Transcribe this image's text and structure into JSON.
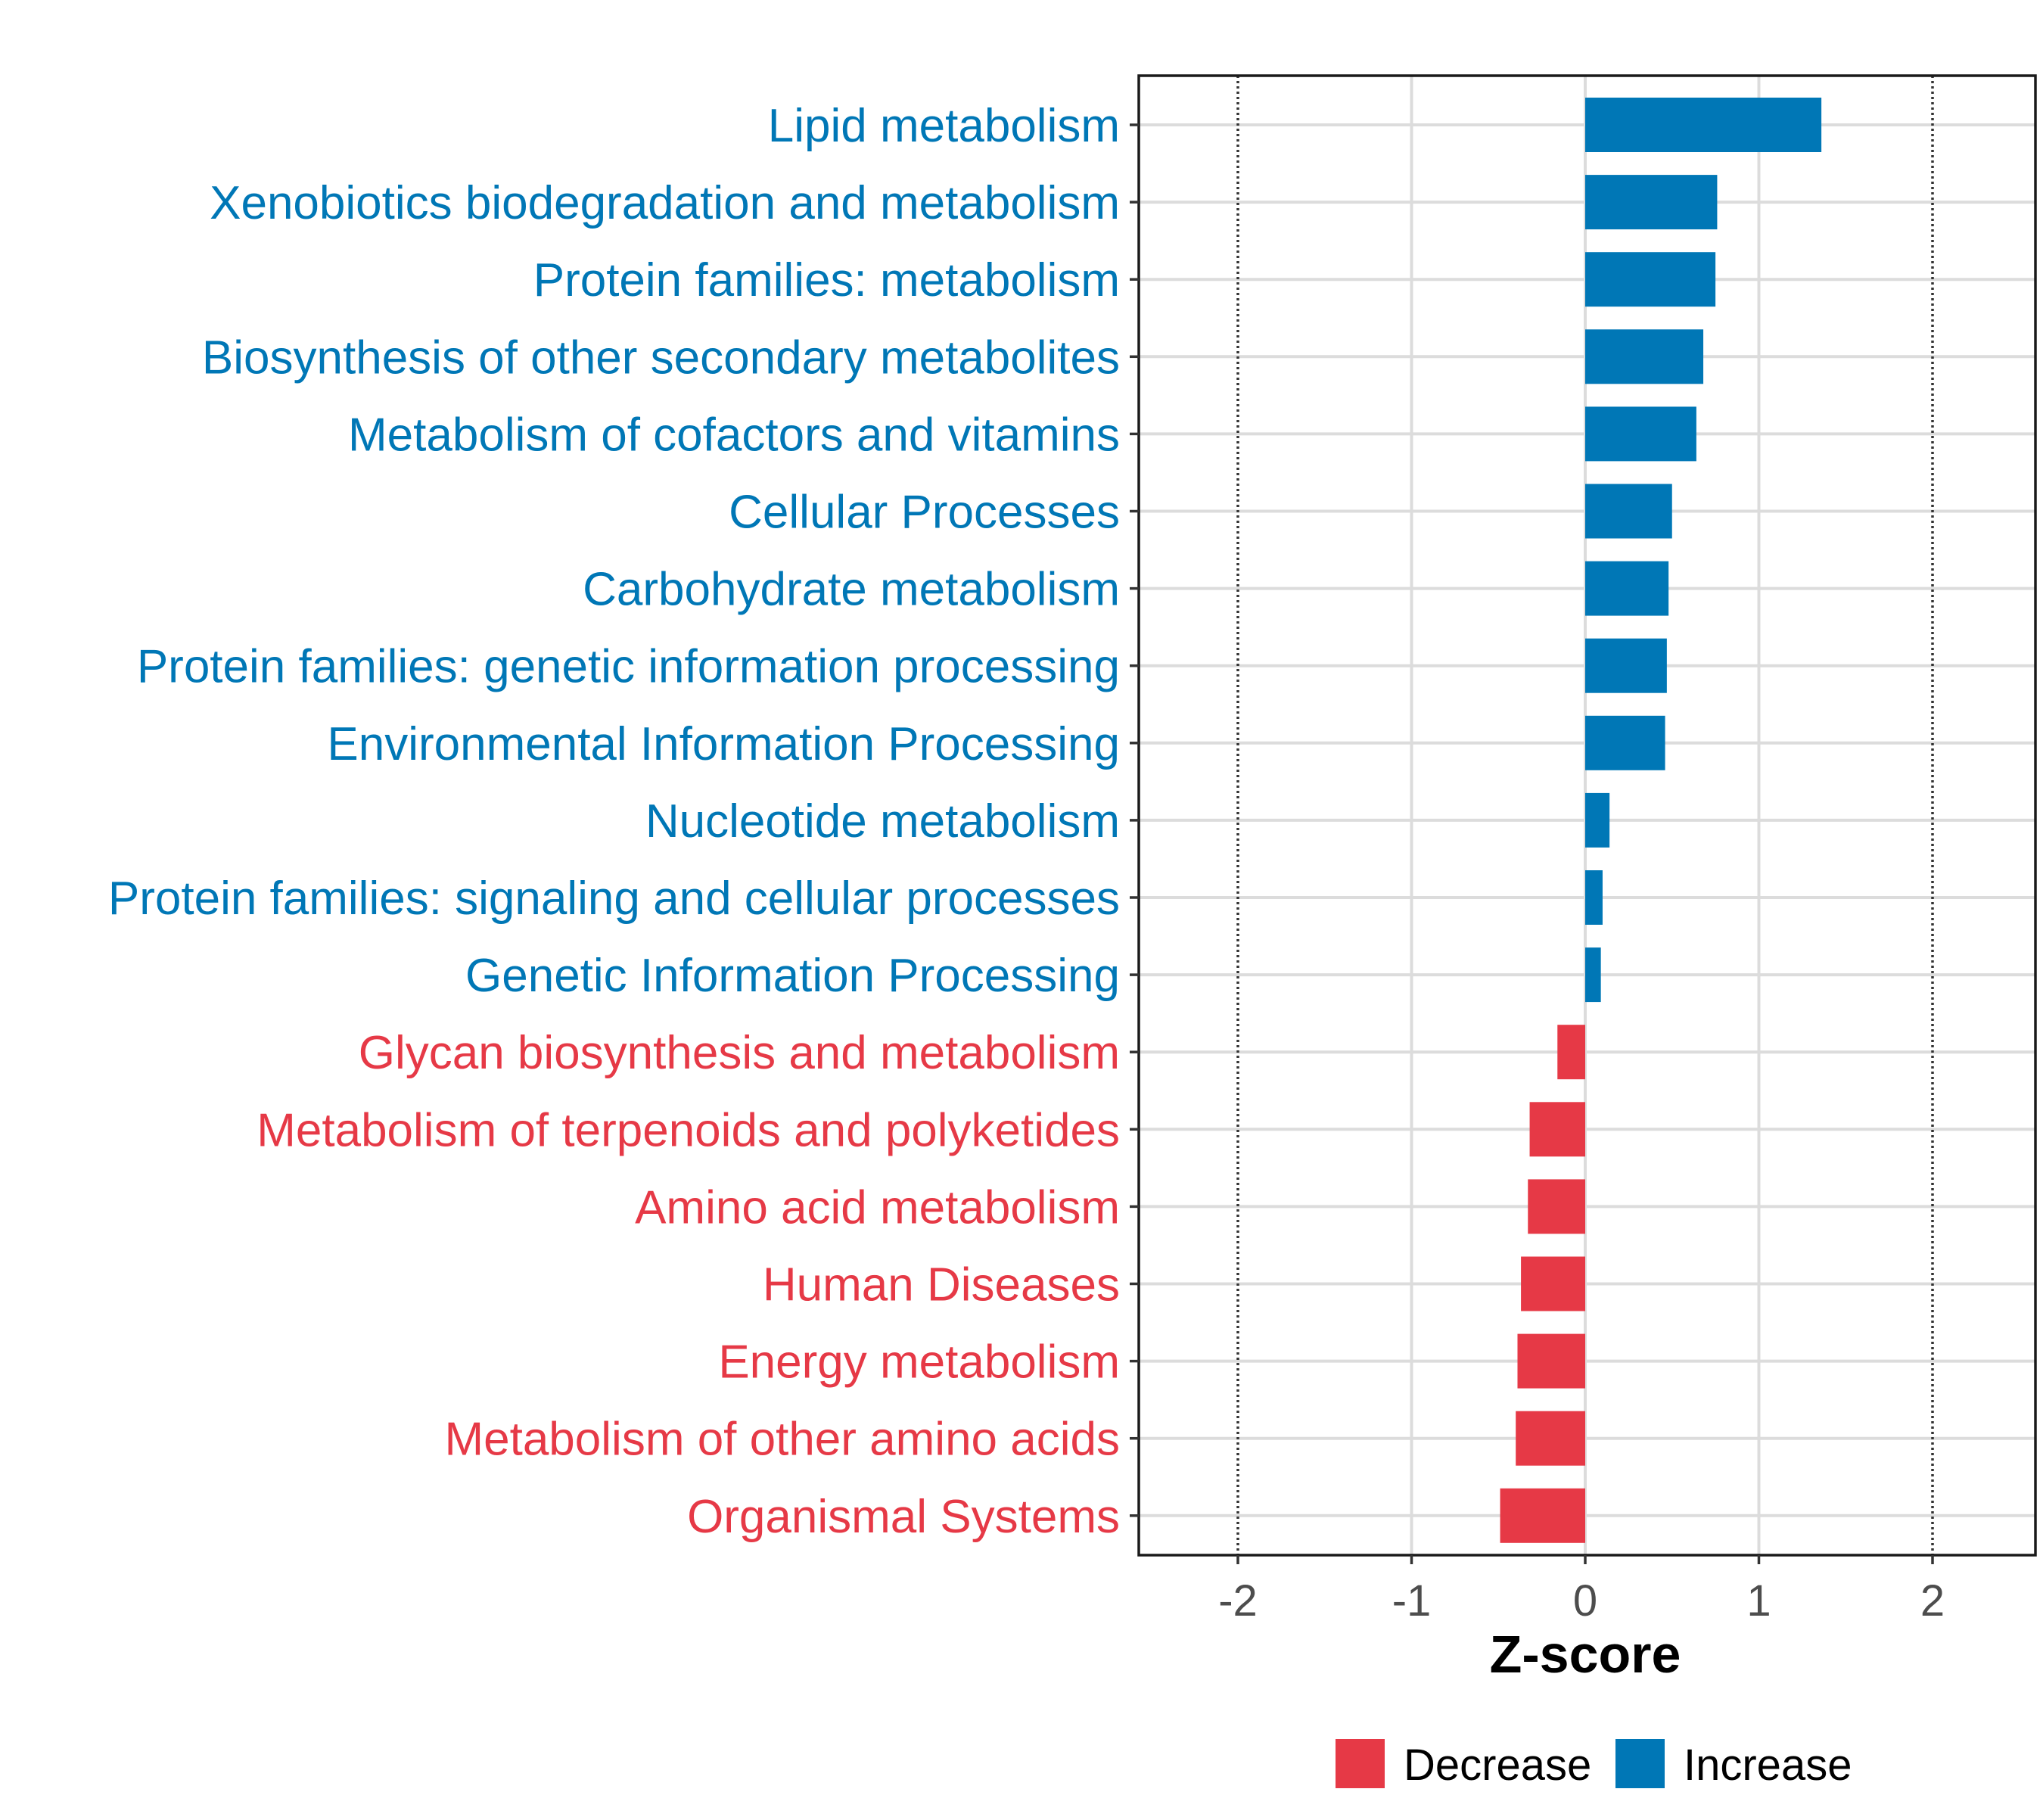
{
  "chart_data": {
    "type": "bar",
    "orientation": "horizontal",
    "title": "",
    "xlabel": "Z-score",
    "ylabel": "",
    "xlim": [
      -2.6,
      2.6
    ],
    "x_ticks": [
      "-2",
      "-1",
      "0",
      "1",
      "2"
    ],
    "x_tick_values": [
      -2,
      -1,
      0,
      1,
      2
    ],
    "threshold_lines": [
      -2,
      2
    ],
    "grid": true,
    "colors": {
      "Increase": "#0077b6",
      "Decrease": "#e63946"
    },
    "categories": [
      "Lipid metabolism",
      "Xenobiotics biodegradation and metabolism",
      "Protein families: metabolism",
      "Biosynthesis of other secondary metabolites",
      "Metabolism of cofactors and vitamins",
      "Cellular Processes",
      "Carbohydrate metabolism",
      "Protein families: genetic information processing",
      "Environmental Information Processing",
      "Nucleotide metabolism",
      "Protein families: signaling and cellular processes",
      "Genetic Information Processing",
      "Glycan biosynthesis and metabolism",
      "Metabolism of terpenoids and polyketides",
      "Amino acid metabolism",
      "Human Diseases",
      "Energy metabolism",
      "Metabolism of other amino acids",
      "Organismal Systems"
    ],
    "values": [
      1.36,
      0.76,
      0.75,
      0.68,
      0.64,
      0.5,
      0.48,
      0.47,
      0.46,
      0.14,
      0.1,
      0.09,
      -0.16,
      -0.32,
      -0.33,
      -0.37,
      -0.39,
      -0.4,
      -0.49
    ],
    "groups": [
      "Increase",
      "Increase",
      "Increase",
      "Increase",
      "Increase",
      "Increase",
      "Increase",
      "Increase",
      "Increase",
      "Increase",
      "Increase",
      "Increase",
      "Decrease",
      "Decrease",
      "Decrease",
      "Decrease",
      "Decrease",
      "Decrease",
      "Decrease"
    ],
    "legend": {
      "position": "bottom",
      "items": [
        "Decrease",
        "Increase"
      ]
    }
  }
}
